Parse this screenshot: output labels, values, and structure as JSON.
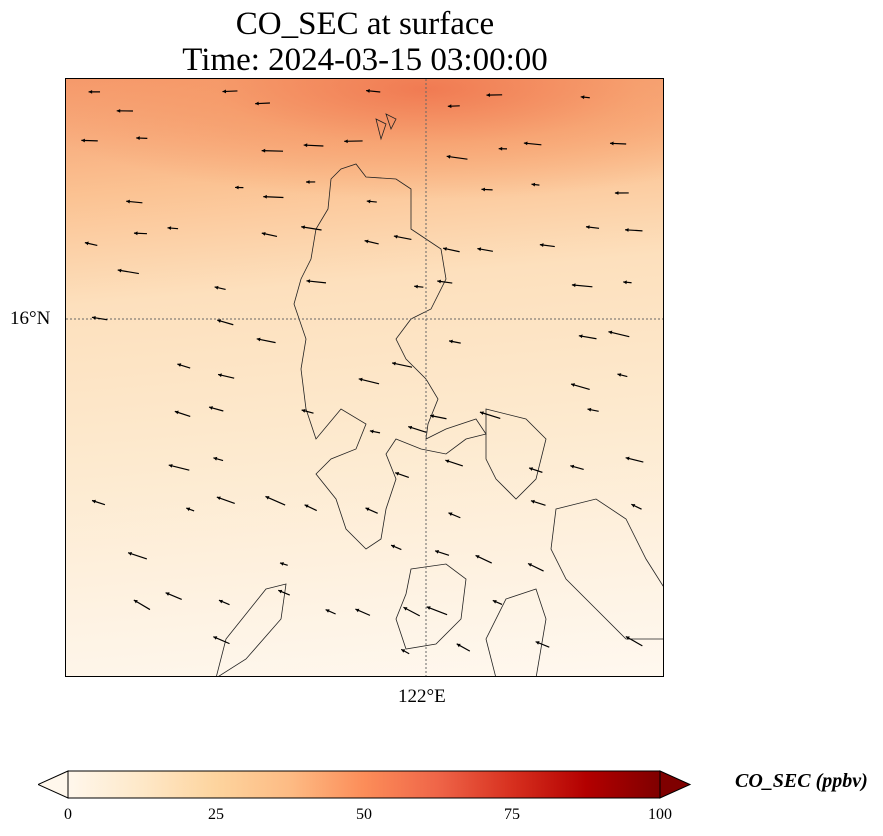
{
  "title": {
    "line1": "CO_SEC at surface",
    "line2": "Time: 2024-03-15 03:00:00"
  },
  "axes": {
    "lat_label": "16°N",
    "lon_label": "122°E"
  },
  "colorbar": {
    "label": "CO_SEC (ppbv)",
    "ticks": [
      "0",
      "25",
      "50",
      "75",
      "100"
    ],
    "range": [
      0,
      100
    ],
    "extend": "both",
    "colormap": [
      "#fff7ec",
      "#fee8c8",
      "#fdd49e",
      "#fdbb84",
      "#fc8d59",
      "#ef6548",
      "#d7301f",
      "#b30000",
      "#7f0000"
    ]
  }
}
